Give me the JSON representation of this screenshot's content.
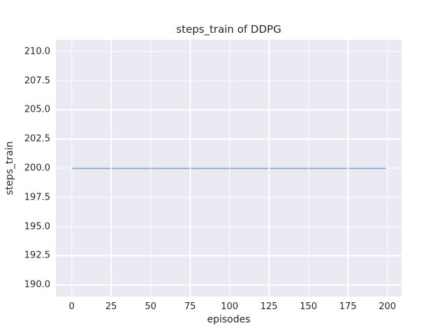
{
  "figure": {
    "title": "steps_train of DDPG",
    "xlabel": "episodes",
    "ylabel": "steps_train"
  },
  "colors": {
    "figure_bg": "#ffffff",
    "plot_bg": "#eaeaf2",
    "grid": "#ffffff",
    "line": "#4c72b0",
    "text": "#262626"
  },
  "chart_data": {
    "type": "line",
    "title": "steps_train of DDPG",
    "xlabel": "episodes",
    "ylabel": "steps_train",
    "xlim": [
      -10,
      209
    ],
    "ylim": [
      189,
      211
    ],
    "x_ticks": [
      0,
      25,
      50,
      75,
      100,
      125,
      150,
      175,
      200
    ],
    "x_tick_labels": [
      "0",
      "25",
      "50",
      "75",
      "100",
      "125",
      "150",
      "175",
      "200"
    ],
    "y_ticks": [
      190.0,
      192.5,
      195.0,
      197.5,
      200.0,
      202.5,
      205.0,
      207.5,
      210.0
    ],
    "y_tick_labels": [
      "190.0",
      "192.5",
      "195.0",
      "197.5",
      "200.0",
      "202.5",
      "205.0",
      "207.5",
      "210.0"
    ],
    "grid": true,
    "legend": false,
    "series": [
      {
        "name": "steps_train",
        "color": "#4c72b0",
        "x": [
          0,
          199
        ],
        "y": [
          200,
          200
        ]
      }
    ]
  }
}
